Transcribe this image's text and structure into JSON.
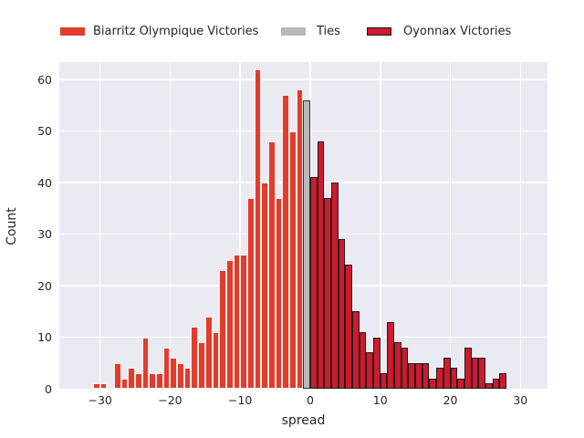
{
  "figure": {
    "background": "#ffffff",
    "plot_background": "#eaeaf2",
    "grid_color": "#ffffff",
    "text_color": "#262626"
  },
  "legend": {
    "items": [
      {
        "label": "Biarritz Olympique Victories",
        "color": "#e13c2c",
        "border": ""
      },
      {
        "label": "Ties",
        "color": "#b9b9b9",
        "border": ""
      },
      {
        "label": "Oyonnax Victories",
        "color": "#ce1a2d",
        "border": "#1a1a1a"
      }
    ]
  },
  "chart_data": {
    "type": "bar",
    "subtype": "histogram",
    "title": "",
    "xlabel": "spread",
    "ylabel": "Count",
    "grid": true,
    "legend_position": "top",
    "bin_width": 1,
    "xlim": [
      -35.82,
      33.87
    ],
    "ylim": [
      0,
      63.4
    ],
    "x_ticks": [
      {
        "value": -30,
        "label": "−30"
      },
      {
        "value": -20,
        "label": "−20"
      },
      {
        "value": -10,
        "label": "−10"
      },
      {
        "value": 0,
        "label": "0"
      },
      {
        "value": 10,
        "label": "10"
      },
      {
        "value": 20,
        "label": "20"
      },
      {
        "value": 30,
        "label": "30"
      }
    ],
    "y_ticks": [
      {
        "value": 0,
        "label": "0"
      },
      {
        "value": 10,
        "label": "10"
      },
      {
        "value": 20,
        "label": "20"
      },
      {
        "value": 30,
        "label": "30"
      },
      {
        "value": 40,
        "label": "40"
      },
      {
        "value": 50,
        "label": "50"
      },
      {
        "value": 60,
        "label": "60"
      }
    ],
    "series": [
      {
        "name": "Biarritz Olympique Victories",
        "color": "#e13c2c",
        "edge_color": "rgba(255,255,255,0.9)",
        "bin_left_start": -31,
        "counts": [
          1,
          1,
          0,
          5,
          2,
          4,
          3,
          10,
          3,
          3,
          8,
          6,
          5,
          4,
          12,
          9,
          14,
          11,
          23,
          25,
          26,
          26,
          37,
          62,
          40,
          48,
          37,
          57,
          50,
          58
        ]
      },
      {
        "name": "Ties",
        "color": "#b9b9b9",
        "edge_color": "#2f2f2f",
        "bin_left_start": -1,
        "counts": [
          56
        ]
      },
      {
        "name": "Oyonnax Victories",
        "color": "#ce1a2d",
        "edge_color": "#1f1f1f",
        "bin_left_start": 0,
        "counts": [
          41,
          48,
          37,
          40,
          29,
          24,
          15,
          11,
          7,
          10,
          3,
          13,
          9,
          8,
          5,
          5,
          5,
          2,
          4,
          6,
          4,
          2,
          8,
          6,
          6,
          1,
          2,
          3
        ]
      }
    ]
  }
}
